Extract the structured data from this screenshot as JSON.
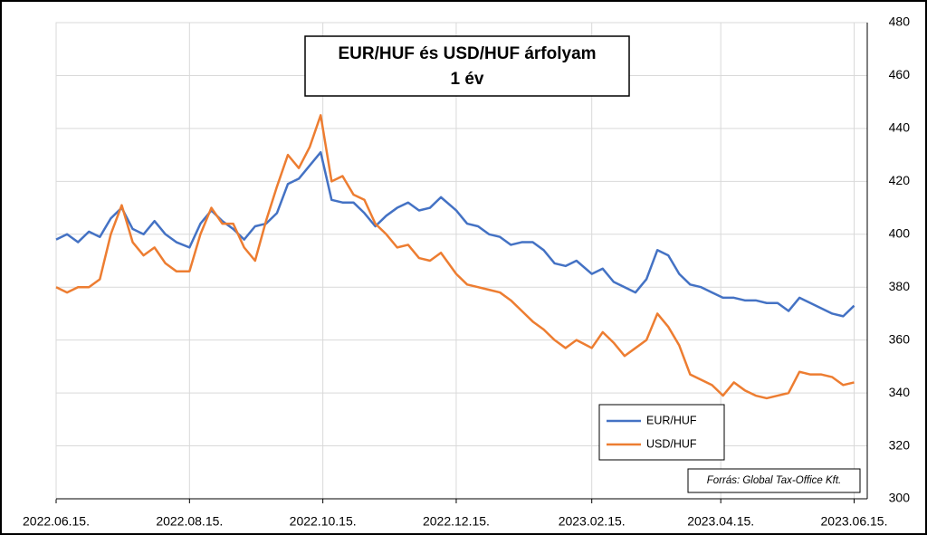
{
  "chart_data": {
    "type": "line",
    "title": "EUR/HUF és USD/HUF árfolyam",
    "subtitle": "1 év",
    "source": "Forrás: Global Tax-Office Kft.",
    "x": [
      "2022-06-15",
      "2022-06-20",
      "2022-06-25",
      "2022-06-30",
      "2022-07-05",
      "2022-07-10",
      "2022-07-15",
      "2022-07-20",
      "2022-07-25",
      "2022-07-30",
      "2022-08-04",
      "2022-08-09",
      "2022-08-15",
      "2022-08-20",
      "2022-08-25",
      "2022-08-30",
      "2022-09-04",
      "2022-09-09",
      "2022-09-14",
      "2022-09-19",
      "2022-09-24",
      "2022-09-29",
      "2022-10-04",
      "2022-10-09",
      "2022-10-14",
      "2022-10-19",
      "2022-10-24",
      "2022-10-29",
      "2022-11-03",
      "2022-11-08",
      "2022-11-13",
      "2022-11-18",
      "2022-11-23",
      "2022-11-28",
      "2022-12-03",
      "2022-12-08",
      "2022-12-15",
      "2022-12-20",
      "2022-12-25",
      "2022-12-30",
      "2023-01-04",
      "2023-01-09",
      "2023-01-14",
      "2023-01-19",
      "2023-01-24",
      "2023-01-29",
      "2023-02-03",
      "2023-02-08",
      "2023-02-15",
      "2023-02-20",
      "2023-02-25",
      "2023-03-02",
      "2023-03-07",
      "2023-03-12",
      "2023-03-17",
      "2023-03-22",
      "2023-03-27",
      "2023-04-01",
      "2023-04-06",
      "2023-04-11",
      "2023-04-16",
      "2023-04-21",
      "2023-04-26",
      "2023-05-01",
      "2023-05-06",
      "2023-05-11",
      "2023-05-16",
      "2023-05-21",
      "2023-05-26",
      "2023-05-31",
      "2023-06-05",
      "2023-06-10",
      "2023-06-15"
    ],
    "series": [
      {
        "name": "EUR/HUF",
        "color": "#4472c4",
        "values": [
          398,
          400,
          397,
          401,
          399,
          406,
          410,
          402,
          400,
          405,
          400,
          397,
          395,
          404,
          409,
          405,
          402,
          398,
          403,
          404,
          408,
          419,
          421,
          426,
          431,
          413,
          412,
          412,
          408,
          403,
          407,
          410,
          412,
          409,
          410,
          414,
          409,
          404,
          403,
          400,
          399,
          396,
          397,
          397,
          394,
          389,
          388,
          390,
          385,
          387,
          382,
          380,
          378,
          383,
          394,
          392,
          385,
          381,
          380,
          378,
          376,
          376,
          375,
          375,
          374,
          374,
          371,
          376,
          374,
          372,
          370,
          369,
          373
        ]
      },
      {
        "name": "USD/HUF",
        "color": "#ed7d31",
        "values": [
          380,
          378,
          380,
          380,
          383,
          400,
          411,
          397,
          392,
          395,
          389,
          386,
          386,
          400,
          410,
          404,
          404,
          395,
          390,
          405,
          418,
          430,
          425,
          433,
          445,
          420,
          422,
          415,
          413,
          404,
          400,
          395,
          396,
          391,
          390,
          393,
          385,
          381,
          380,
          379,
          378,
          375,
          371,
          367,
          364,
          360,
          357,
          360,
          357,
          363,
          359,
          354,
          357,
          360,
          370,
          365,
          358,
          347,
          345,
          343,
          339,
          344,
          341,
          339,
          338,
          339,
          340,
          348,
          347,
          347,
          346,
          343,
          344
        ]
      }
    ],
    "xlim": [
      "2022-06-15",
      "2023-06-21"
    ],
    "xticks": [
      {
        "value": "2022-06-15",
        "label": "2022.06.15."
      },
      {
        "value": "2022-08-15",
        "label": "2022.08.15."
      },
      {
        "value": "2022-10-15",
        "label": "2022.10.15."
      },
      {
        "value": "2022-12-15",
        "label": "2022.12.15."
      },
      {
        "value": "2023-02-15",
        "label": "2023.02.15."
      },
      {
        "value": "2023-04-15",
        "label": "2023.04.15."
      },
      {
        "value": "2023-06-15",
        "label": "2023.06.15."
      }
    ],
    "ylim": [
      300,
      480
    ],
    "yticks": [
      300,
      320,
      340,
      360,
      380,
      400,
      420,
      440,
      460,
      480
    ],
    "grid": true
  }
}
